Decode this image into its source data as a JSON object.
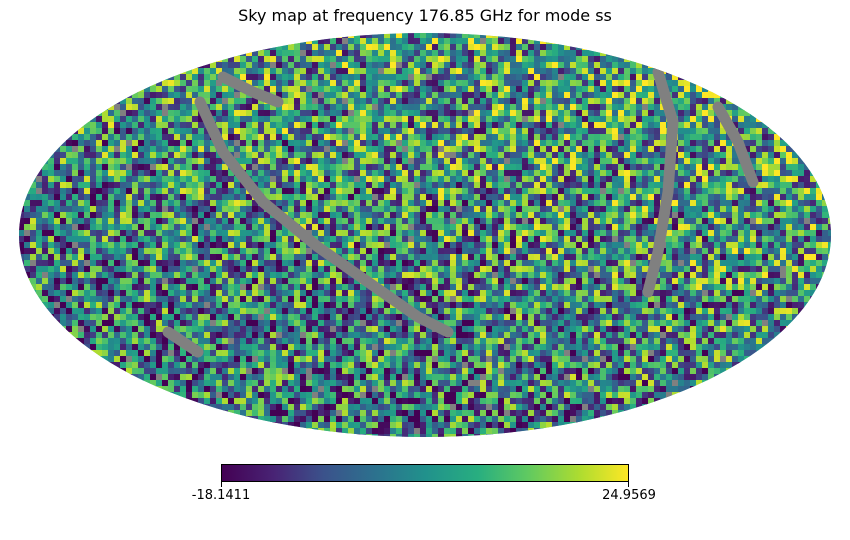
{
  "chart_data": {
    "type": "heatmap",
    "projection": "mollweide",
    "title": "Sky map at frequency 176.85 GHz for mode ss",
    "colormap": "viridis",
    "masked_color": "#808080",
    "colorbar": {
      "min": -18.1411,
      "max": 24.9569,
      "min_label": "-18.1411",
      "max_label": "24.9569",
      "orientation": "horizontal",
      "placement": "bottom"
    },
    "grid": false,
    "legend": "none"
  }
}
